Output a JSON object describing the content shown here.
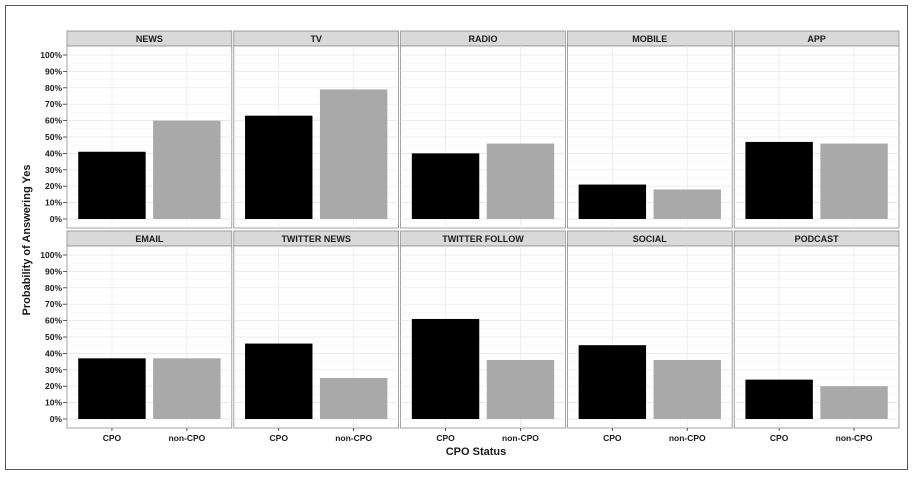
{
  "chart_data": {
    "type": "bar",
    "facet_layout": {
      "rows": 2,
      "cols": 5
    },
    "xlabel": "CPO Status",
    "ylabel": "Probability of Answering Yes",
    "categories": [
      "CPO",
      "non-CPO"
    ],
    "bar_colors": [
      "#000000",
      "#a9a9a9"
    ],
    "ylim": [
      0,
      1
    ],
    "y_ticks": [
      0,
      0.1,
      0.2,
      0.3,
      0.4,
      0.5,
      0.6,
      0.7,
      0.8,
      0.9,
      1.0
    ],
    "y_tick_labels": [
      "0%",
      "10%",
      "20%",
      "30%",
      "40%",
      "50%",
      "60%",
      "70%",
      "80%",
      "90%",
      "100%"
    ],
    "grid": true,
    "legend": "none",
    "panels": [
      {
        "title": "NEWS",
        "values": [
          0.41,
          0.6
        ]
      },
      {
        "title": "TV",
        "values": [
          0.63,
          0.79
        ]
      },
      {
        "title": "RADIO",
        "values": [
          0.4,
          0.46
        ]
      },
      {
        "title": "MOBILE",
        "values": [
          0.21,
          0.18
        ]
      },
      {
        "title": "APP",
        "values": [
          0.47,
          0.46
        ]
      },
      {
        "title": "EMAIL",
        "values": [
          0.37,
          0.37
        ]
      },
      {
        "title": "TWITTER NEWS",
        "values": [
          0.46,
          0.25
        ]
      },
      {
        "title": "TWITTER FOLLOW",
        "values": [
          0.61,
          0.36
        ]
      },
      {
        "title": "SOCIAL",
        "values": [
          0.45,
          0.36
        ]
      },
      {
        "title": "PODCAST",
        "values": [
          0.24,
          0.2
        ]
      }
    ]
  }
}
